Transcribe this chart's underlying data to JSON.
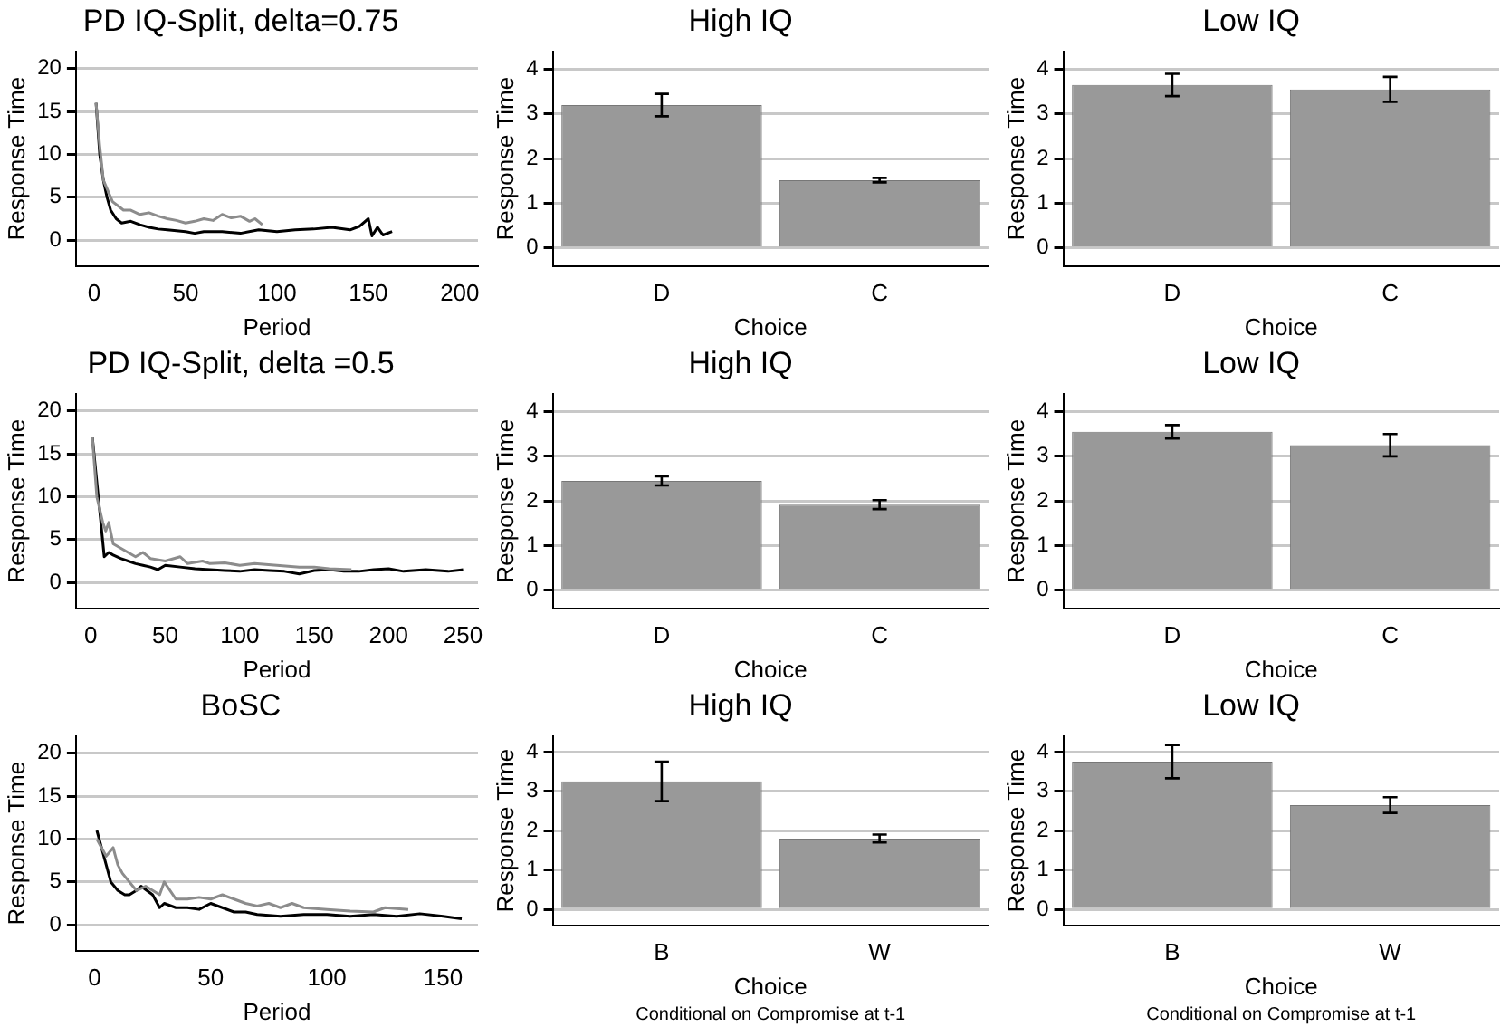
{
  "chart_data": [
    {
      "type": "line",
      "title": "PD IQ-Split, delta=0.75",
      "xlabel": "Period",
      "ylabel": "Response Time",
      "xlim": [
        -10,
        210
      ],
      "xticks": [
        0,
        50,
        100,
        150,
        200
      ],
      "ylim": [
        -3,
        22
      ],
      "yticks": [
        0,
        5,
        10,
        15,
        20
      ],
      "grid": "y",
      "series": [
        {
          "color": "#8c8c8c",
          "x": [
            1,
            3,
            5,
            7,
            10,
            13,
            16,
            20,
            25,
            30,
            35,
            40,
            45,
            50,
            55,
            60,
            65,
            70,
            75,
            80,
            85,
            88,
            92
          ],
          "values": [
            16,
            11,
            7,
            6,
            4.5,
            4,
            3.5,
            3.5,
            3,
            3.2,
            2.8,
            2.5,
            2.3,
            2,
            2.2,
            2.5,
            2.3,
            3,
            2.6,
            2.8,
            2.2,
            2.5,
            1.8
          ]
        },
        {
          "color": "#000000",
          "x": [
            1,
            3,
            5,
            7,
            9,
            12,
            15,
            20,
            25,
            30,
            35,
            40,
            50,
            55,
            60,
            70,
            80,
            90,
            100,
            110,
            120,
            130,
            140,
            145,
            150,
            152,
            155,
            158,
            163
          ],
          "values": [
            16,
            10,
            7,
            5,
            3.5,
            2.5,
            2,
            2.2,
            1.8,
            1.5,
            1.3,
            1.2,
            1,
            0.8,
            1,
            1,
            0.8,
            1.2,
            1,
            1.2,
            1.3,
            1.5,
            1.2,
            1.6,
            2.5,
            0.5,
            1.5,
            0.6,
            1
          ]
        }
      ]
    },
    {
      "type": "bar",
      "title": "High IQ",
      "xlabel": "Choice",
      "ylabel": "Response Time",
      "categories": [
        "D",
        "C"
      ],
      "ylim": [
        -0.4,
        4.4
      ],
      "yticks": [
        0,
        1,
        2,
        3,
        4
      ],
      "grid": "y",
      "series": [
        {
          "color": "#999999",
          "values": [
            3.2,
            1.52
          ],
          "errors": [
            0.25,
            0.05
          ]
        }
      ]
    },
    {
      "type": "bar",
      "title": "Low IQ",
      "xlabel": "Choice",
      "ylabel": "Response Time",
      "categories": [
        "D",
        "C"
      ],
      "ylim": [
        -0.4,
        4.4
      ],
      "yticks": [
        0,
        1,
        2,
        3,
        4
      ],
      "grid": "y",
      "series": [
        {
          "color": "#999999",
          "values": [
            3.65,
            3.55
          ],
          "errors": [
            0.25,
            0.28
          ]
        }
      ]
    },
    {
      "type": "line",
      "title": "PD IQ-Split, delta =0.5",
      "xlabel": "Period",
      "ylabel": "Response Time",
      "xlim": [
        -10,
        260
      ],
      "xticks": [
        0,
        50,
        100,
        150,
        200,
        250
      ],
      "ylim": [
        -3,
        22
      ],
      "yticks": [
        0,
        5,
        10,
        15,
        20
      ],
      "grid": "y",
      "series": [
        {
          "color": "#8c8c8c",
          "x": [
            1,
            4,
            8,
            10,
            12,
            15,
            20,
            25,
            30,
            35,
            40,
            50,
            60,
            65,
            75,
            80,
            90,
            100,
            110,
            125,
            140,
            150,
            160,
            175
          ],
          "values": [
            17,
            10,
            7,
            6,
            7,
            4.5,
            4,
            3.5,
            3,
            3.5,
            2.8,
            2.5,
            3,
            2.2,
            2.5,
            2.2,
            2.3,
            2,
            2.2,
            2,
            1.8,
            1.8,
            1.6,
            1.5
          ]
        },
        {
          "color": "#000000",
          "x": [
            1,
            5,
            9,
            12,
            15,
            20,
            25,
            30,
            35,
            40,
            45,
            50,
            60,
            70,
            80,
            90,
            100,
            110,
            120,
            130,
            140,
            150,
            160,
            170,
            180,
            190,
            200,
            210,
            225,
            240,
            250
          ],
          "values": [
            17,
            10,
            3,
            3.5,
            3.2,
            2.8,
            2.5,
            2.2,
            2,
            1.8,
            1.5,
            2,
            1.8,
            1.6,
            1.5,
            1.4,
            1.3,
            1.5,
            1.4,
            1.3,
            1,
            1.4,
            1.5,
            1.3,
            1.3,
            1.5,
            1.6,
            1.3,
            1.5,
            1.3,
            1.5
          ]
        }
      ]
    },
    {
      "type": "bar",
      "title": "High IQ",
      "xlabel": "Choice",
      "ylabel": "Response Time",
      "categories": [
        "D",
        "C"
      ],
      "ylim": [
        -0.4,
        4.4
      ],
      "yticks": [
        0,
        1,
        2,
        3,
        4
      ],
      "grid": "y",
      "series": [
        {
          "color": "#999999",
          "values": [
            2.45,
            1.92
          ],
          "errors": [
            0.1,
            0.1
          ]
        }
      ]
    },
    {
      "type": "bar",
      "title": "Low IQ",
      "xlabel": "Choice",
      "ylabel": "Response Time",
      "categories": [
        "D",
        "C"
      ],
      "ylim": [
        -0.4,
        4.4
      ],
      "yticks": [
        0,
        1,
        2,
        3,
        4
      ],
      "grid": "y",
      "series": [
        {
          "color": "#999999",
          "values": [
            3.55,
            3.25
          ],
          "errors": [
            0.15,
            0.25
          ]
        }
      ]
    },
    {
      "type": "line",
      "title": "BoSC",
      "xlabel": "Period",
      "ylabel": "Response Time",
      "xlim": [
        -8,
        165
      ],
      "xticks": [
        0,
        50,
        100,
        150
      ],
      "ylim": [
        -3,
        22
      ],
      "yticks": [
        0,
        5,
        10,
        15,
        20
      ],
      "grid": "y",
      "series": [
        {
          "color": "#8c8c8c",
          "x": [
            1,
            3,
            5,
            8,
            10,
            12,
            15,
            18,
            22,
            25,
            28,
            30,
            35,
            40,
            45,
            50,
            55,
            60,
            65,
            70,
            75,
            80,
            85,
            90,
            100,
            110,
            120,
            125,
            135
          ],
          "values": [
            10,
            9,
            8,
            9,
            7,
            6,
            5,
            4,
            4.5,
            4,
            3.5,
            5,
            3,
            3,
            3.2,
            3,
            3.5,
            3,
            2.5,
            2.2,
            2.5,
            2,
            2.5,
            2,
            1.8,
            1.6,
            1.5,
            2,
            1.8
          ]
        },
        {
          "color": "#000000",
          "x": [
            1,
            3,
            5,
            7,
            10,
            13,
            15,
            18,
            20,
            25,
            28,
            30,
            35,
            40,
            45,
            50,
            55,
            60,
            65,
            70,
            80,
            90,
            100,
            110,
            120,
            130,
            140,
            150,
            155,
            158
          ],
          "values": [
            11,
            9,
            7,
            5,
            4,
            3.5,
            3.5,
            4,
            4.5,
            3.5,
            2,
            2.5,
            2,
            2,
            1.8,
            2.5,
            2,
            1.5,
            1.5,
            1.2,
            1,
            1.2,
            1.2,
            1,
            1.2,
            1,
            1.3,
            1,
            0.8,
            0.7
          ]
        }
      ]
    },
    {
      "type": "bar",
      "title": "High IQ",
      "xlabel": "Choice",
      "ylabel": "Response Time",
      "categories": [
        "B",
        "W"
      ],
      "ylim": [
        -0.4,
        4.4
      ],
      "yticks": [
        0,
        1,
        2,
        3,
        4
      ],
      "grid": "y",
      "annotations": [
        "Conditional on Compromise at t-1"
      ],
      "series": [
        {
          "color": "#999999",
          "values": [
            3.25,
            1.8
          ],
          "errors": [
            0.5,
            0.1
          ]
        }
      ]
    },
    {
      "type": "bar",
      "title": "Low IQ",
      "xlabel": "Choice",
      "ylabel": "Response Time",
      "categories": [
        "B",
        "W"
      ],
      "ylim": [
        -0.4,
        4.4
      ],
      "yticks": [
        0,
        1,
        2,
        3,
        4
      ],
      "grid": "y",
      "annotations": [
        "Conditional on Compromise at t-1"
      ],
      "series": [
        {
          "color": "#999999",
          "values": [
            3.75,
            2.65
          ],
          "errors": [
            0.42,
            0.2
          ]
        }
      ]
    }
  ]
}
